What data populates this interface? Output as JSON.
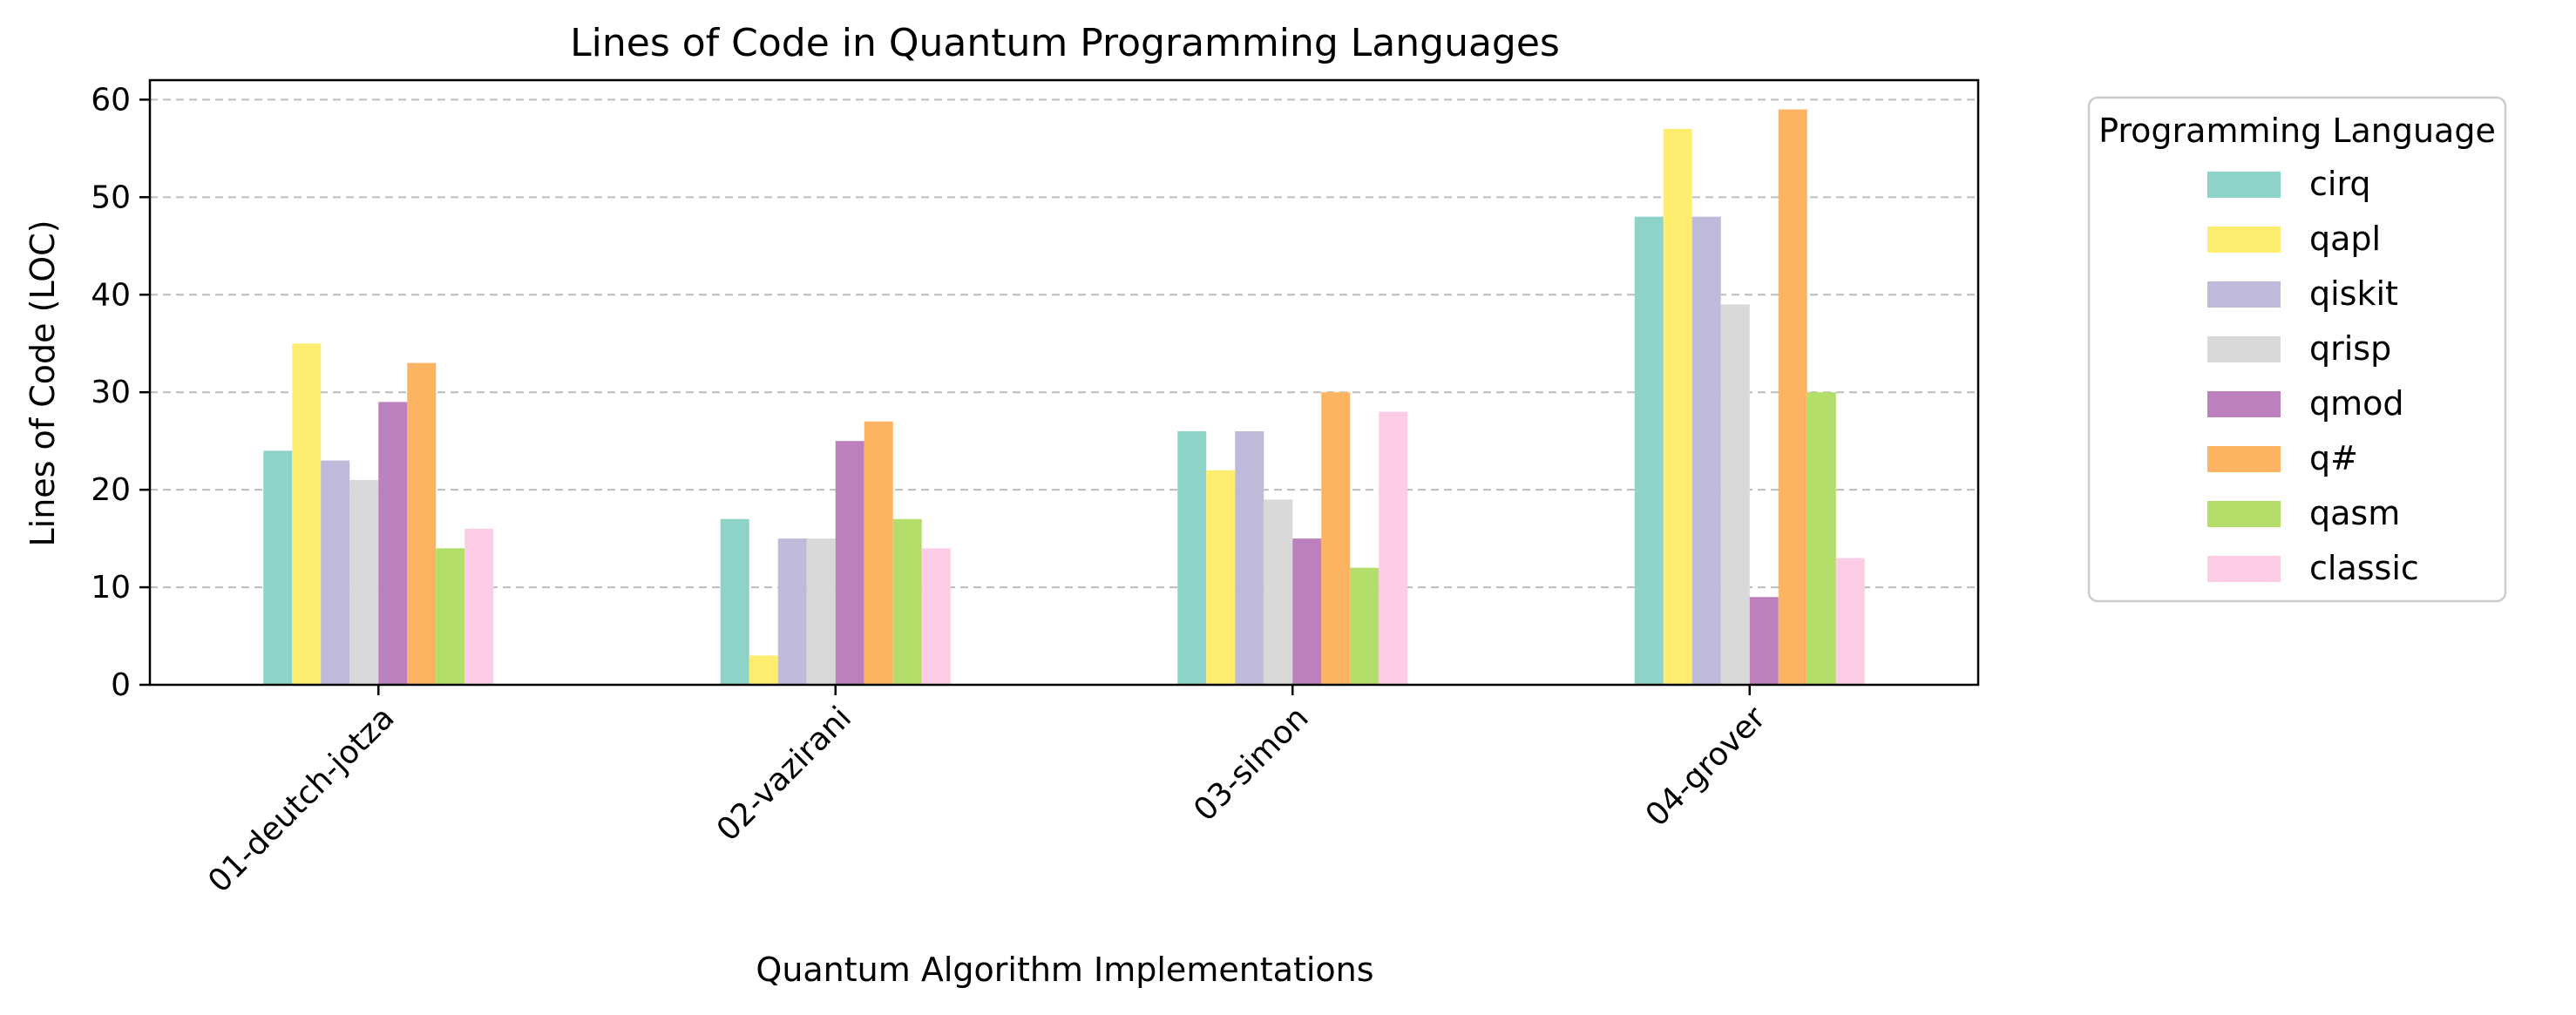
{
  "chart_data": {
    "type": "bar",
    "title": "Lines of Code in Quantum Programming Languages",
    "xlabel": "Quantum Algorithm Implementations",
    "ylabel": "Lines of Code (LOC)",
    "ylim": [
      0,
      62
    ],
    "yticks": [
      0,
      10,
      20,
      30,
      40,
      50,
      60
    ],
    "grid": "y-dashed",
    "legend": {
      "title": "Programming Language",
      "placement": "outside-right"
    },
    "categories": [
      "01-deutch-jotza",
      "02-vazirani",
      "03-simon",
      "04-grover"
    ],
    "series": [
      {
        "name": "cirq",
        "color": "#8dd3c7",
        "values": [
          24,
          17,
          26,
          48
        ]
      },
      {
        "name": "qapl",
        "color": "#ffed6f",
        "values": [
          35,
          3,
          22,
          57
        ]
      },
      {
        "name": "qiskit",
        "color": "#bebada",
        "values": [
          23,
          15,
          26,
          48
        ]
      },
      {
        "name": "qrisp",
        "color": "#d9d9d9",
        "values": [
          21,
          15,
          19,
          39
        ]
      },
      {
        "name": "qmod",
        "color": "#bc80bd",
        "values": [
          29,
          25,
          15,
          9
        ]
      },
      {
        "name": "q#",
        "color": "#fdb462",
        "values": [
          33,
          27,
          30,
          59
        ]
      },
      {
        "name": "qasm",
        "color": "#b3de69",
        "values": [
          14,
          17,
          12,
          30
        ]
      },
      {
        "name": "classic",
        "color": "#fccde5",
        "values": [
          16,
          14,
          28,
          13
        ]
      }
    ]
  }
}
